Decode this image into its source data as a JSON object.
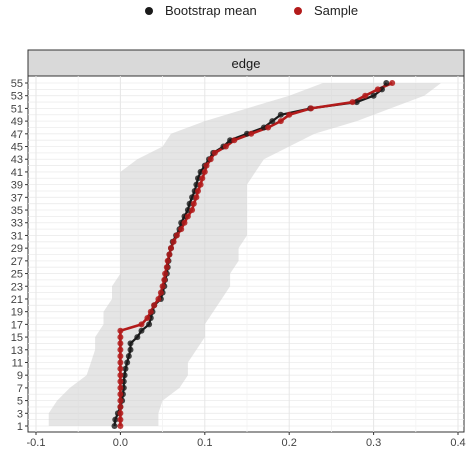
{
  "legend": {
    "items": [
      {
        "label": "Bootstrap mean",
        "color": "#1a1a1a"
      },
      {
        "label": "Sample",
        "color": "#b31b1b"
      }
    ]
  },
  "chart_data": {
    "type": "line",
    "facet_title": "edge",
    "x_ticks": [
      "-0.1",
      "0.0",
      "0.1",
      "0.2",
      "0.3",
      "0.4"
    ],
    "x_tick_values": [
      -0.1,
      0.0,
      0.1,
      0.2,
      0.3,
      0.4
    ],
    "xlim": [
      -0.1,
      0.4
    ],
    "y_tick_labels": [
      "1",
      "3",
      "5",
      "7",
      "9",
      "11",
      "13",
      "15",
      "17",
      "19",
      "21",
      "23",
      "25",
      "27",
      "29",
      "31",
      "33",
      "35",
      "37",
      "39",
      "41",
      "43",
      "45",
      "47",
      "49",
      "51",
      "53",
      "55"
    ],
    "ylim": [
      1,
      55
    ],
    "grid": true,
    "legend_position": "top",
    "ci_band": {
      "edges": [
        1,
        3,
        5,
        7,
        9,
        11,
        13,
        15,
        17,
        19,
        21,
        23,
        25,
        27,
        29,
        31,
        33,
        35,
        37,
        39,
        41,
        43,
        45,
        47,
        49,
        51,
        53,
        55
      ],
      "lower": [
        -0.085,
        -0.085,
        -0.075,
        -0.06,
        -0.04,
        -0.035,
        -0.03,
        -0.03,
        -0.02,
        -0.02,
        -0.01,
        -0.01,
        0.0,
        0.0,
        0.0,
        0.0,
        0.0,
        0.0,
        0.0,
        0.0,
        0.0,
        0.02,
        0.05,
        0.06,
        0.1,
        0.15,
        0.2,
        0.24
      ],
      "upper": [
        0.045,
        0.045,
        0.05,
        0.07,
        0.08,
        0.08,
        0.09,
        0.1,
        0.1,
        0.11,
        0.12,
        0.13,
        0.13,
        0.14,
        0.14,
        0.15,
        0.15,
        0.15,
        0.15,
        0.15,
        0.16,
        0.17,
        0.2,
        0.23,
        0.28,
        0.32,
        0.36,
        0.38
      ]
    },
    "series": [
      {
        "name": "Bootstrap mean",
        "color": "#1a1a1a",
        "x": [
          -0.007,
          -0.006,
          -0.003,
          0.0,
          0.002,
          0.003,
          0.004,
          0.004,
          0.005,
          0.006,
          0.008,
          0.01,
          0.012,
          0.012,
          0.02,
          0.025,
          0.034,
          0.036,
          0.038,
          0.04,
          0.048,
          0.05,
          0.052,
          0.053,
          0.055,
          0.056,
          0.057,
          0.058,
          0.06,
          0.062,
          0.066,
          0.07,
          0.072,
          0.076,
          0.08,
          0.082,
          0.085,
          0.088,
          0.09,
          0.092,
          0.095,
          0.1,
          0.105,
          0.11,
          0.122,
          0.13,
          0.15,
          0.17,
          0.18,
          0.19,
          0.225,
          0.28,
          0.3,
          0.31,
          0.315
        ],
        "y": [
          1,
          2,
          3,
          4,
          5,
          6,
          7,
          8,
          9,
          10,
          11,
          12,
          13,
          14,
          15,
          16,
          17,
          18,
          19,
          20,
          21,
          22,
          23,
          24,
          25,
          26,
          27,
          28,
          29,
          30,
          31,
          32,
          33,
          34,
          35,
          36,
          37,
          38,
          39,
          40,
          41,
          42,
          43,
          44,
          45,
          46,
          47,
          48,
          49,
          50,
          51,
          52,
          53,
          54,
          55
        ]
      },
      {
        "name": "Sample",
        "color": "#b31b1b",
        "x": [
          0.0,
          0.0,
          0.0,
          0.0,
          0.0,
          0.0,
          0.0,
          0.0,
          0.0,
          0.0,
          0.0,
          0.0,
          0.0,
          0.0,
          0.0,
          0.0,
          0.025,
          0.032,
          0.036,
          0.04,
          0.045,
          0.048,
          0.05,
          0.052,
          0.053,
          0.055,
          0.056,
          0.058,
          0.06,
          0.063,
          0.067,
          0.072,
          0.076,
          0.08,
          0.085,
          0.087,
          0.09,
          0.092,
          0.095,
          0.097,
          0.1,
          0.102,
          0.107,
          0.112,
          0.125,
          0.135,
          0.155,
          0.175,
          0.19,
          0.2,
          0.226,
          0.275,
          0.29,
          0.305,
          0.322
        ],
        "y": [
          1,
          2,
          3,
          4,
          5,
          6,
          7,
          8,
          9,
          10,
          11,
          12,
          13,
          14,
          15,
          16,
          17,
          18,
          19,
          20,
          21,
          22,
          23,
          24,
          25,
          26,
          27,
          28,
          29,
          30,
          31,
          32,
          33,
          34,
          35,
          36,
          37,
          38,
          39,
          40,
          41,
          42,
          43,
          44,
          45,
          46,
          47,
          48,
          49,
          50,
          51,
          52,
          53,
          54,
          55
        ]
      }
    ]
  }
}
